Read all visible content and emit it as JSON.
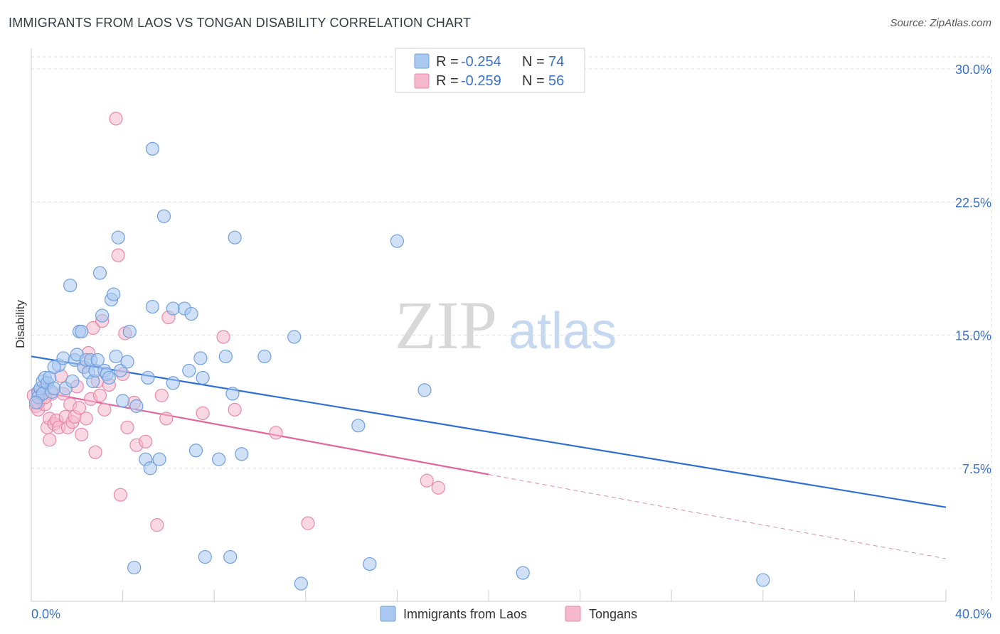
{
  "header": {
    "title": "IMMIGRANTS FROM LAOS VS TONGAN DISABILITY CORRELATION CHART",
    "source": "Source: ZipAtlas.com"
  },
  "watermark": {
    "zip": "ZIP",
    "atlas": "atlas"
  },
  "colors": {
    "laos_fill": "#aac8f0",
    "laos_stroke": "#6f9fdc",
    "laos_line": "#2d6fd0",
    "tongan_fill": "#f6b8cc",
    "tongan_stroke": "#e889a8",
    "tongan_line": "#e0659a",
    "tick_label": "#3a72c8",
    "grid": "#dddddd"
  },
  "chart_data": {
    "type": "scatter",
    "title": "IMMIGRANTS FROM LAOS VS TONGAN DISABILITY CORRELATION CHART",
    "xlabel": "",
    "ylabel": "Disability",
    "xlim": [
      0,
      40
    ],
    "ylim": [
      0,
      30
    ],
    "x_tick_labels": [
      "0.0%",
      "40.0%"
    ],
    "y_ticks": [
      7.5,
      15.0,
      22.5,
      30.0
    ],
    "y_tick_labels": [
      "7.5%",
      "15.0%",
      "22.5%",
      "30.0%"
    ],
    "grid": true,
    "legend_placement": "top-center",
    "stats": [
      {
        "r_label": "R = ",
        "r": "-0.254",
        "n_label": "N = ",
        "n": "74"
      },
      {
        "r_label": "R = ",
        "r": "-0.259",
        "n_label": "N = ",
        "n": "56"
      }
    ],
    "series": [
      {
        "name": "Immigrants from Laos",
        "trend": {
          "x": [
            0,
            40
          ],
          "y": [
            13.8,
            5.3
          ]
        },
        "points": [
          [
            0.3,
            11.8
          ],
          [
            0.3,
            11.5
          ],
          [
            0.4,
            12.0
          ],
          [
            0.5,
            12.4
          ],
          [
            0.5,
            11.7
          ],
          [
            0.6,
            12.6
          ],
          [
            0.7,
            12.3
          ],
          [
            0.8,
            12.6
          ],
          [
            0.9,
            11.8
          ],
          [
            1.0,
            12.0
          ],
          [
            1.2,
            13.3
          ],
          [
            1.4,
            13.7
          ],
          [
            1.5,
            12.0
          ],
          [
            1.7,
            17.8
          ],
          [
            1.8,
            12.4
          ],
          [
            1.9,
            13.6
          ],
          [
            2.0,
            13.9
          ],
          [
            2.1,
            15.2
          ],
          [
            2.2,
            15.2
          ],
          [
            2.3,
            13.2
          ],
          [
            2.4,
            13.6
          ],
          [
            2.5,
            12.9
          ],
          [
            2.6,
            13.6
          ],
          [
            2.7,
            12.4
          ],
          [
            2.8,
            13.0
          ],
          [
            2.9,
            13.6
          ],
          [
            3.0,
            18.5
          ],
          [
            3.1,
            16.1
          ],
          [
            3.2,
            13.0
          ],
          [
            3.3,
            12.8
          ],
          [
            3.4,
            12.6
          ],
          [
            3.5,
            17.0
          ],
          [
            3.6,
            17.3
          ],
          [
            3.7,
            13.8
          ],
          [
            3.8,
            20.5
          ],
          [
            3.9,
            13.0
          ],
          [
            4.0,
            11.3
          ],
          [
            4.2,
            13.5
          ],
          [
            4.3,
            15.2
          ],
          [
            4.5,
            1.9
          ],
          [
            4.6,
            11.0
          ],
          [
            5.0,
            8.0
          ],
          [
            5.1,
            12.6
          ],
          [
            5.2,
            7.5
          ],
          [
            5.3,
            16.6
          ],
          [
            5.3,
            25.5
          ],
          [
            5.6,
            8.0
          ],
          [
            5.8,
            21.7
          ],
          [
            6.2,
            12.3
          ],
          [
            6.2,
            16.5
          ],
          [
            6.7,
            16.5
          ],
          [
            6.9,
            13.0
          ],
          [
            7.0,
            16.2
          ],
          [
            7.2,
            8.5
          ],
          [
            7.4,
            13.7
          ],
          [
            7.5,
            12.6
          ],
          [
            7.6,
            2.5
          ],
          [
            8.2,
            8.0
          ],
          [
            8.5,
            13.8
          ],
          [
            8.7,
            2.5
          ],
          [
            8.8,
            11.7
          ],
          [
            8.9,
            20.5
          ],
          [
            9.2,
            8.3
          ],
          [
            10.2,
            13.8
          ],
          [
            11.5,
            14.9
          ],
          [
            11.8,
            1.0
          ],
          [
            14.3,
            9.9
          ],
          [
            14.8,
            2.1
          ],
          [
            16.0,
            20.3
          ],
          [
            17.2,
            11.9
          ],
          [
            21.5,
            1.6
          ],
          [
            32.0,
            1.2
          ],
          [
            1.0,
            13.2
          ],
          [
            0.2,
            11.2
          ]
        ]
      },
      {
        "name": "Tongans",
        "trend": {
          "x": [
            0,
            40
          ],
          "y": [
            11.9,
            2.4
          ]
        },
        "points": [
          [
            0.1,
            11.6
          ],
          [
            0.2,
            11.0
          ],
          [
            0.3,
            10.8
          ],
          [
            0.4,
            11.4
          ],
          [
            0.5,
            11.9
          ],
          [
            0.6,
            11.1
          ],
          [
            0.7,
            9.8
          ],
          [
            0.8,
            10.3
          ],
          [
            0.9,
            11.7
          ],
          [
            1.0,
            10.0
          ],
          [
            1.1,
            10.2
          ],
          [
            1.2,
            9.8
          ],
          [
            1.3,
            12.7
          ],
          [
            1.4,
            11.7
          ],
          [
            1.5,
            10.4
          ],
          [
            1.6,
            9.8
          ],
          [
            1.7,
            11.1
          ],
          [
            1.8,
            10.1
          ],
          [
            1.9,
            10.4
          ],
          [
            2.0,
            12.1
          ],
          [
            2.1,
            10.9
          ],
          [
            2.2,
            9.4
          ],
          [
            2.3,
            13.2
          ],
          [
            2.4,
            10.3
          ],
          [
            2.5,
            14.0
          ],
          [
            2.6,
            11.4
          ],
          [
            2.7,
            15.4
          ],
          [
            2.8,
            8.4
          ],
          [
            2.9,
            12.4
          ],
          [
            3.0,
            11.6
          ],
          [
            3.1,
            15.8
          ],
          [
            3.2,
            10.8
          ],
          [
            3.4,
            12.2
          ],
          [
            3.7,
            27.2
          ],
          [
            3.8,
            19.5
          ],
          [
            3.9,
            6.0
          ],
          [
            4.0,
            12.8
          ],
          [
            4.1,
            15.1
          ],
          [
            4.2,
            9.8
          ],
          [
            4.5,
            11.2
          ],
          [
            4.6,
            8.8
          ],
          [
            5.0,
            9.0
          ],
          [
            5.5,
            4.3
          ],
          [
            5.7,
            11.6
          ],
          [
            5.9,
            10.3
          ],
          [
            6.0,
            16.0
          ],
          [
            7.5,
            10.6
          ],
          [
            8.4,
            14.9
          ],
          [
            8.9,
            10.8
          ],
          [
            10.7,
            9.5
          ],
          [
            12.1,
            4.4
          ],
          [
            17.3,
            6.8
          ],
          [
            17.8,
            6.4
          ],
          [
            0.3,
            11.2
          ],
          [
            0.6,
            11.5
          ],
          [
            0.8,
            9.1
          ]
        ]
      }
    ]
  },
  "legend": {
    "items": [
      {
        "label": "Immigrants from Laos"
      },
      {
        "label": "Tongans"
      }
    ]
  }
}
